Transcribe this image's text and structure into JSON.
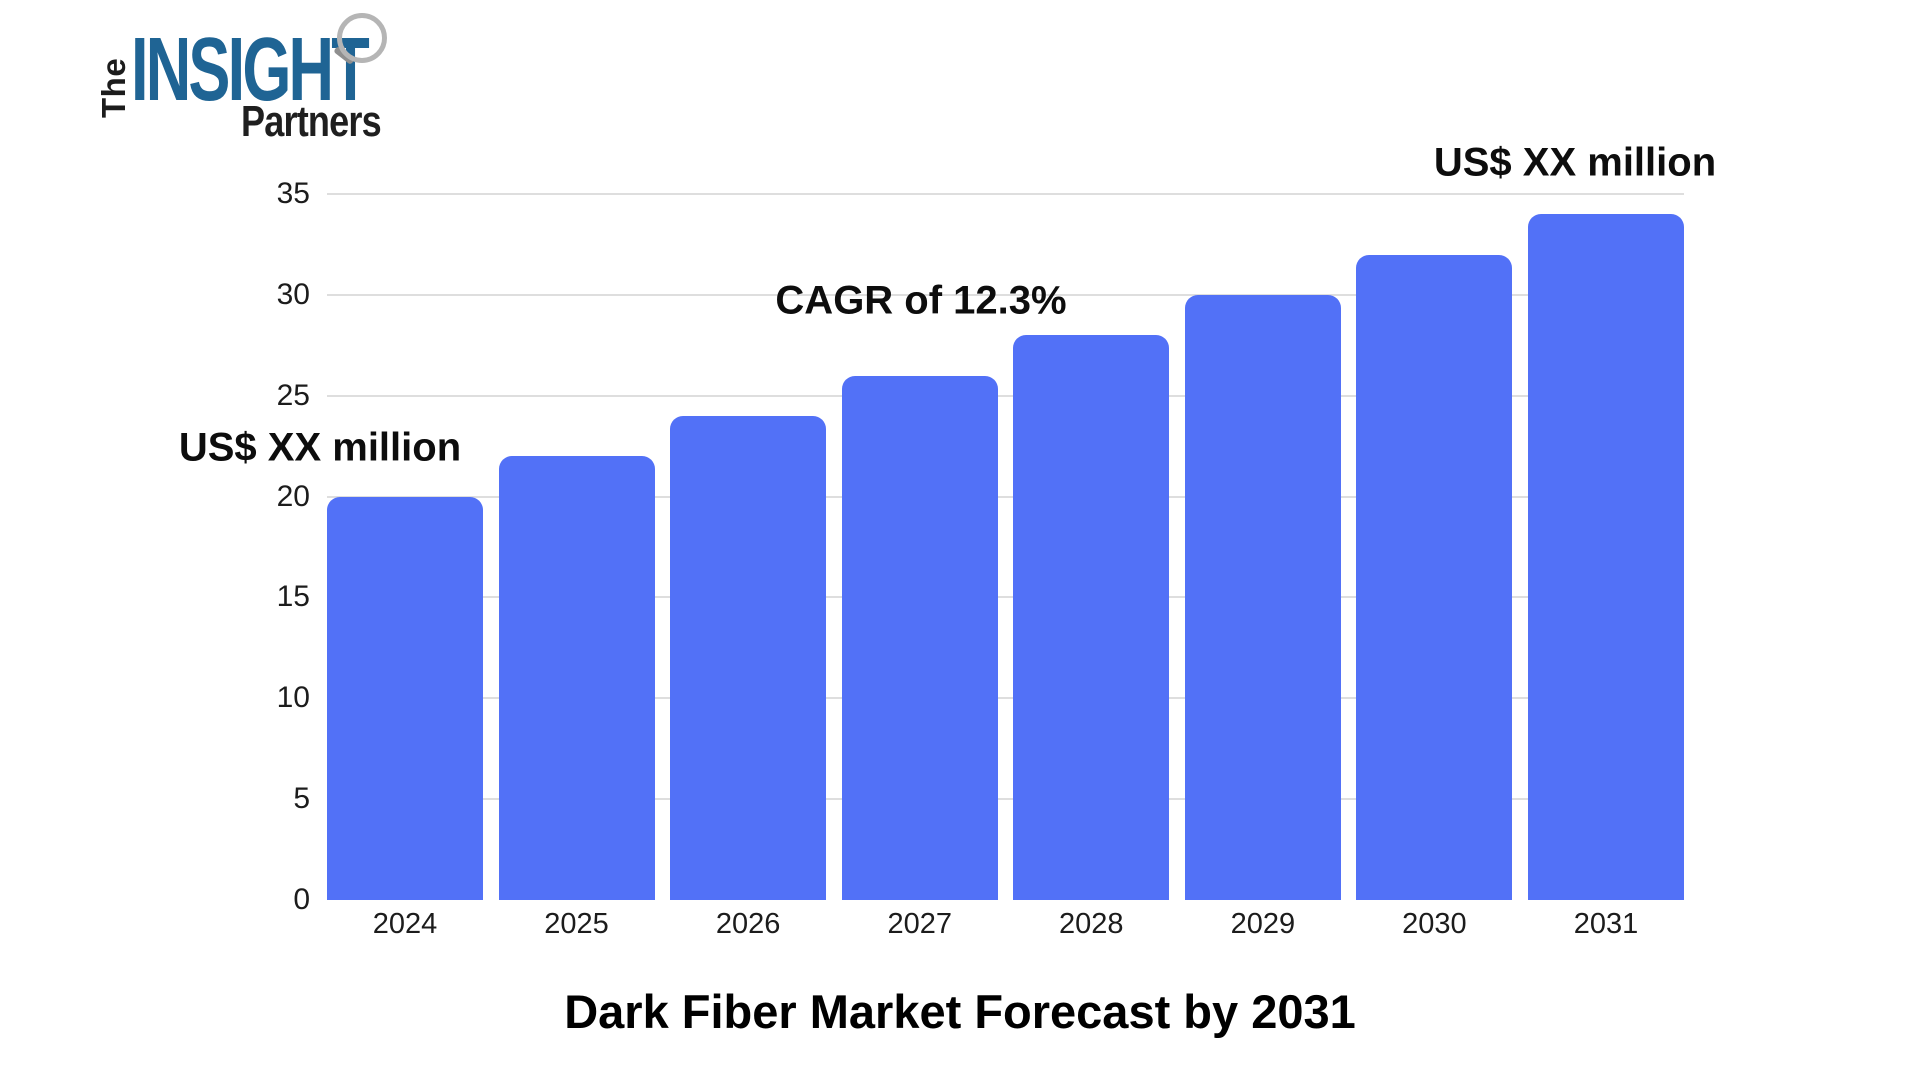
{
  "logo": {
    "the": "The",
    "insight": "INSIGHT",
    "partners": "Partners",
    "insight_color": "#1F6494"
  },
  "annotations": {
    "start_value": "US$ XX million",
    "cagr": "CAGR of 12.3%",
    "end_value": "US$ XX million"
  },
  "title": "Dark Fiber Market Forecast by 2031",
  "chart_data": {
    "type": "bar",
    "categories": [
      "2024",
      "2025",
      "2026",
      "2027",
      "2028",
      "2029",
      "2030",
      "2031"
    ],
    "values": [
      20,
      22,
      24,
      26,
      28,
      30,
      32,
      34
    ],
    "title": "Dark Fiber Market Forecast by 2031",
    "xlabel": "",
    "ylabel": "",
    "ylim": [
      0,
      35
    ],
    "yticks": [
      0,
      5,
      10,
      15,
      20,
      25,
      30,
      35
    ],
    "grid": true,
    "legend": false,
    "bar_color": "#5271F7",
    "gridline_color": "#DEDEDE",
    "annotations": [
      "US$ XX million",
      "CAGR of 12.3%",
      "US$ XX million"
    ]
  }
}
